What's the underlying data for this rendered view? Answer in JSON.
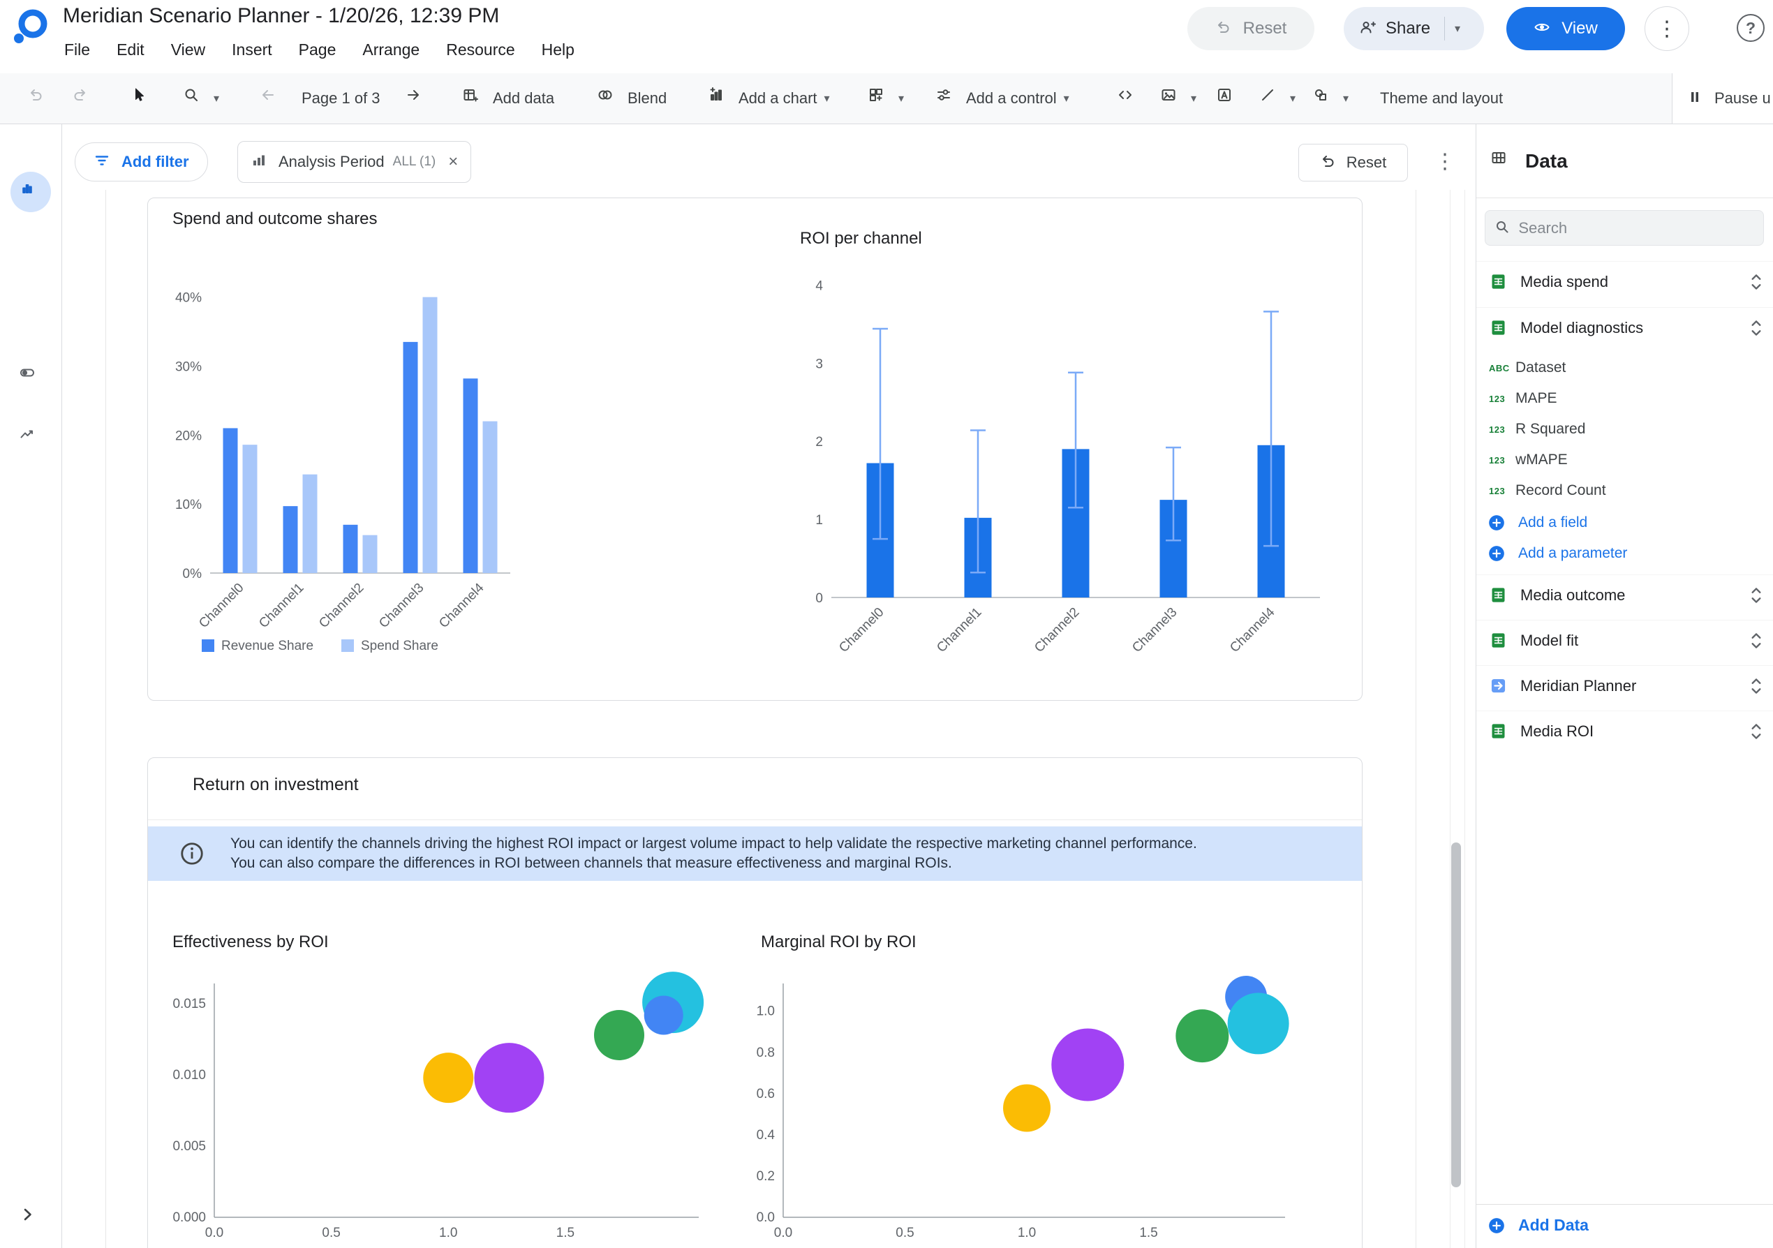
{
  "app": {
    "title": "Meridian Scenario Planner - 1/20/26, 12:39 PM",
    "menus": [
      "File",
      "Edit",
      "View",
      "Insert",
      "Page",
      "Arrange",
      "Resource",
      "Help"
    ],
    "header_buttons": {
      "reset": "Reset",
      "share": "Share",
      "view": "View"
    }
  },
  "toolbar": {
    "page_indicator": "Page 1 of 3",
    "add_data": "Add data",
    "blend": "Blend",
    "add_chart": "Add a chart",
    "add_control": "Add a control",
    "theme_layout": "Theme and layout",
    "pause": "Pause u"
  },
  "filter_bar": {
    "add_filter": "Add filter",
    "chip_name": "Analysis Period",
    "chip_scope": "ALL (1)",
    "reset": "Reset"
  },
  "report": {
    "section_title": "Return on investment",
    "info_text": "You can identify the channels driving the highest ROI impact or largest volume impact to help validate the respective marketing channel performance. You can also compare the differences in ROI between channels that measure effectiveness and marginal ROIs."
  },
  "data_panel": {
    "title": "Data",
    "search_placeholder": "Search",
    "sources": [
      "Media spend",
      "Model diagnostics",
      "Media outcome",
      "Model fit",
      "Meridian Planner",
      "Media ROI"
    ],
    "fields": [
      {
        "type": "ABC",
        "name": "Dataset"
      },
      {
        "type": "123",
        "name": "MAPE"
      },
      {
        "type": "123",
        "name": "R Squared"
      },
      {
        "type": "123",
        "name": "wMAPE"
      },
      {
        "type": "123",
        "name": "Record Count"
      }
    ],
    "add_field": "Add a field",
    "add_parameter": "Add a parameter",
    "add_data": "Add Data"
  },
  "icons": {
    "logo": "looker-studio-logo",
    "undo": "curved-left-arrow",
    "redo": "curved-right-arrow",
    "select": "mouse-pointer",
    "zoom": "magnifier",
    "embed": "angle-brackets",
    "pause": "pause-bars",
    "help": "question-mark-circle",
    "more": "vertical-ellipsis",
    "field_dimension_color": "#188038",
    "accent_blue": "#1a73e8",
    "banner_blue": "#d2e3fc"
  },
  "chart_data": [
    {
      "type": "bar",
      "title": "Spend and outcome shares",
      "categories": [
        "Channel0",
        "Channel1",
        "Channel2",
        "Channel3",
        "Channel4"
      ],
      "series": [
        {
          "name": "Revenue Share",
          "color": "#4285f4",
          "values": [
            21.0,
            9.7,
            7.0,
            33.5,
            28.2
          ]
        },
        {
          "name": "Spend Share",
          "color": "#a8c7fa",
          "values": [
            18.6,
            14.3,
            5.5,
            40.0,
            22.0
          ]
        }
      ],
      "yticks": [
        0,
        10,
        20,
        30,
        40
      ],
      "ytick_suffix": "%",
      "ylim": [
        0,
        43
      ],
      "legend_position": "bottom"
    },
    {
      "type": "bar",
      "title": "ROI per channel",
      "categories": [
        "Channel0",
        "Channel1",
        "Channel2",
        "Channel3",
        "Channel4"
      ],
      "series": [
        {
          "name": "ROI",
          "color": "#1a73e8",
          "values": [
            1.72,
            1.02,
            1.9,
            1.25,
            1.95
          ]
        }
      ],
      "error_bars": {
        "color": "#7baaf7",
        "low": [
          0.75,
          0.32,
          1.15,
          0.73,
          0.66
        ],
        "high": [
          3.44,
          2.14,
          2.88,
          1.92,
          3.66
        ]
      },
      "yticks": [
        0,
        1,
        2,
        3,
        4
      ],
      "ytick_suffix": "",
      "ylim": [
        0,
        4.2
      ],
      "legend_position": "none"
    },
    {
      "type": "scatter",
      "title": "Effectiveness by ROI",
      "points": [
        {
          "x": 1.0,
          "y": 0.0098,
          "r": 36,
          "color": "#fbbc04"
        },
        {
          "x": 1.26,
          "y": 0.0098,
          "r": 50,
          "color": "#a142f4"
        },
        {
          "x": 1.73,
          "y": 0.0128,
          "r": 36,
          "color": "#34a853"
        },
        {
          "x": 1.96,
          "y": 0.0151,
          "r": 44,
          "color": "#24c1e0"
        },
        {
          "x": 1.92,
          "y": 0.0142,
          "r": 28,
          "color": "#4285f4"
        }
      ],
      "xticks": [
        0.0,
        0.5,
        1.0,
        1.5
      ],
      "yticks": [
        0.0,
        0.005,
        0.01,
        0.015
      ],
      "xtick_decimals": 1,
      "ytick_decimals": 3,
      "xlim": [
        0,
        2.07
      ],
      "ylim": [
        0,
        0.01535
      ]
    },
    {
      "type": "scatter",
      "title": "Marginal ROI by ROI",
      "points": [
        {
          "x": 1.0,
          "y": 0.53,
          "r": 34,
          "color": "#fbbc04"
        },
        {
          "x": 1.25,
          "y": 0.74,
          "r": 52,
          "color": "#a142f4"
        },
        {
          "x": 1.72,
          "y": 0.88,
          "r": 38,
          "color": "#34a853"
        },
        {
          "x": 1.9,
          "y": 1.07,
          "r": 30,
          "color": "#4285f4"
        },
        {
          "x": 1.95,
          "y": 0.94,
          "r": 44,
          "color": "#24c1e0"
        }
      ],
      "xticks": [
        0.0,
        0.5,
        1.0,
        1.5
      ],
      "yticks": [
        0.0,
        0.2,
        0.4,
        0.6,
        0.8,
        1.0
      ],
      "xtick_decimals": 1,
      "ytick_decimals": 1,
      "xlim": [
        0,
        2.06
      ],
      "ylim": [
        0,
        1.06
      ]
    }
  ]
}
